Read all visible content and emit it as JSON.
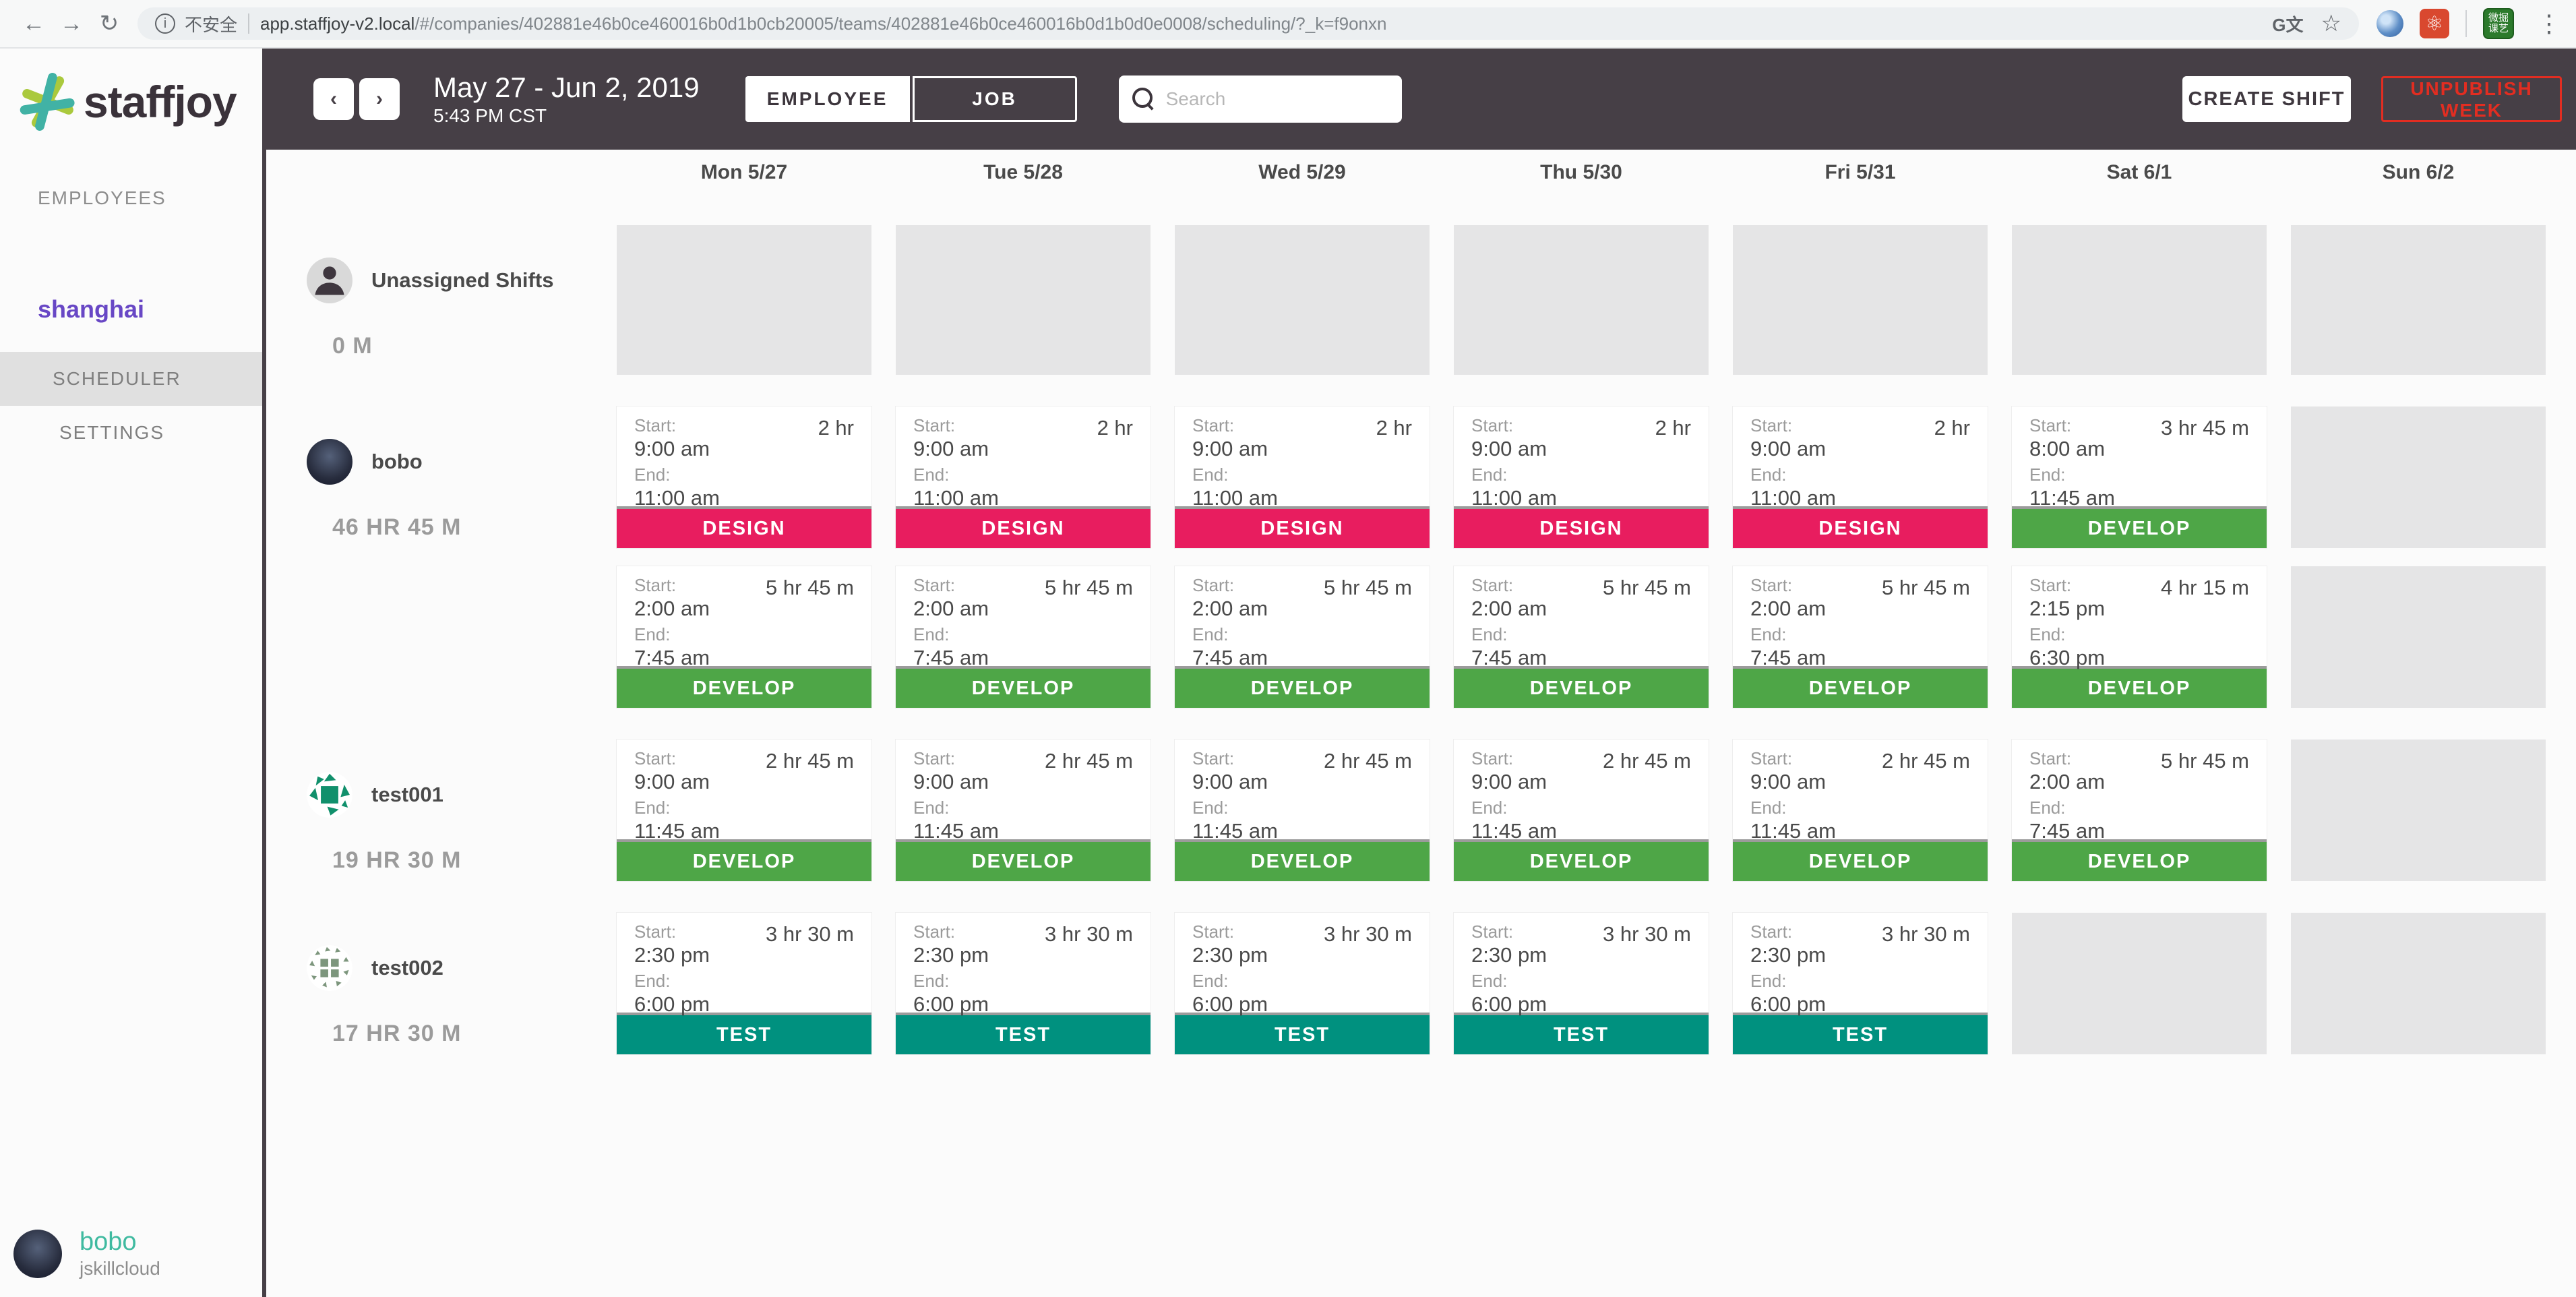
{
  "browser": {
    "security_label": "不安全",
    "url_host": "app.staffjoy-v2.local",
    "url_path": "/#/companies/402881e46b0ce460016b0d1b0cb20005/teams/402881e46b0ce460016b0d1b0d0e0008/scheduling/?_k=f9onxn",
    "extension_green_text": "微掘 课艺"
  },
  "sidebar": {
    "logo_text": "staffjoy",
    "employees_label": "EMPLOYEES",
    "team_name": "shanghai",
    "items": [
      {
        "label": "SCHEDULER",
        "active": true
      },
      {
        "label": "SETTINGS",
        "active": false
      }
    ],
    "user": {
      "name": "bobo",
      "company": "jskillcloud"
    }
  },
  "toolbar": {
    "date_range": "May 27 - Jun 2, 2019",
    "current_time": "5:43 PM CST",
    "view_toggle": [
      {
        "label": "EMPLOYEE",
        "active": true
      },
      {
        "label": "JOB",
        "active": false
      }
    ],
    "search_placeholder": "Search",
    "create_shift_label": "CREATE SHIFT",
    "unpublish_label": "UNPUBLISH WEEK"
  },
  "job_colors": {
    "DESIGN": "#e81d5f",
    "DEVELOP": "#4ea647",
    "TEST": "#00917f"
  },
  "avatar_colors": {
    "identicon_green": "#11906c",
    "identicon_sage": "#7d967d"
  },
  "calendar": {
    "days": [
      "Mon 5/27",
      "Tue 5/28",
      "Wed 5/29",
      "Thu 5/30",
      "Fri 5/31",
      "Sat 6/1",
      "Sun 6/2"
    ],
    "labels": {
      "start": "Start:",
      "end": "End:"
    },
    "rows": [
      {
        "name": "Unassigned Shifts",
        "hours": "0 M",
        "avatar": "placeholder",
        "tall_empty": true,
        "lines": [
          [
            null,
            null,
            null,
            null,
            null,
            null,
            null
          ]
        ]
      },
      {
        "name": "bobo",
        "hours": "46 HR 45 M",
        "avatar": "photo",
        "tall_empty": false,
        "lines": [
          [
            {
              "start": "9:00 am",
              "end": "11:00 am",
              "duration": "2 hr",
              "job": "DESIGN"
            },
            {
              "start": "9:00 am",
              "end": "11:00 am",
              "duration": "2 hr",
              "job": "DESIGN"
            },
            {
              "start": "9:00 am",
              "end": "11:00 am",
              "duration": "2 hr",
              "job": "DESIGN"
            },
            {
              "start": "9:00 am",
              "end": "11:00 am",
              "duration": "2 hr",
              "job": "DESIGN"
            },
            {
              "start": "9:00 am",
              "end": "11:00 am",
              "duration": "2 hr",
              "job": "DESIGN"
            },
            {
              "start": "8:00 am",
              "end": "11:45 am",
              "duration": "3 hr 45 m",
              "job": "DEVELOP"
            },
            null
          ],
          [
            {
              "start": "2:00 am",
              "end": "7:45 am",
              "duration": "5 hr 45 m",
              "job": "DEVELOP"
            },
            {
              "start": "2:00 am",
              "end": "7:45 am",
              "duration": "5 hr 45 m",
              "job": "DEVELOP"
            },
            {
              "start": "2:00 am",
              "end": "7:45 am",
              "duration": "5 hr 45 m",
              "job": "DEVELOP"
            },
            {
              "start": "2:00 am",
              "end": "7:45 am",
              "duration": "5 hr 45 m",
              "job": "DEVELOP"
            },
            {
              "start": "2:00 am",
              "end": "7:45 am",
              "duration": "5 hr 45 m",
              "job": "DEVELOP"
            },
            {
              "start": "2:15 pm",
              "end": "6:30 pm",
              "duration": "4 hr 15 m",
              "job": "DEVELOP"
            },
            null
          ]
        ]
      },
      {
        "name": "test001",
        "hours": "19 HR 30 M",
        "avatar": "identicon-green",
        "tall_empty": false,
        "lines": [
          [
            {
              "start": "9:00 am",
              "end": "11:45 am",
              "duration": "2 hr 45 m",
              "job": "DEVELOP"
            },
            {
              "start": "9:00 am",
              "end": "11:45 am",
              "duration": "2 hr 45 m",
              "job": "DEVELOP"
            },
            {
              "start": "9:00 am",
              "end": "11:45 am",
              "duration": "2 hr 45 m",
              "job": "DEVELOP"
            },
            {
              "start": "9:00 am",
              "end": "11:45 am",
              "duration": "2 hr 45 m",
              "job": "DEVELOP"
            },
            {
              "start": "9:00 am",
              "end": "11:45 am",
              "duration": "2 hr 45 m",
              "job": "DEVELOP"
            },
            {
              "start": "2:00 am",
              "end": "7:45 am",
              "duration": "5 hr 45 m",
              "job": "DEVELOP"
            },
            null
          ]
        ]
      },
      {
        "name": "test002",
        "hours": "17 HR 30 M",
        "avatar": "identicon-sage",
        "tall_empty": false,
        "lines": [
          [
            {
              "start": "2:30 pm",
              "end": "6:00 pm",
              "duration": "3 hr 30 m",
              "job": "TEST"
            },
            {
              "start": "2:30 pm",
              "end": "6:00 pm",
              "duration": "3 hr 30 m",
              "job": "TEST"
            },
            {
              "start": "2:30 pm",
              "end": "6:00 pm",
              "duration": "3 hr 30 m",
              "job": "TEST"
            },
            {
              "start": "2:30 pm",
              "end": "6:00 pm",
              "duration": "3 hr 30 m",
              "job": "TEST"
            },
            {
              "start": "2:30 pm",
              "end": "6:00 pm",
              "duration": "3 hr 30 m",
              "job": "TEST"
            },
            null,
            null
          ]
        ]
      }
    ]
  }
}
